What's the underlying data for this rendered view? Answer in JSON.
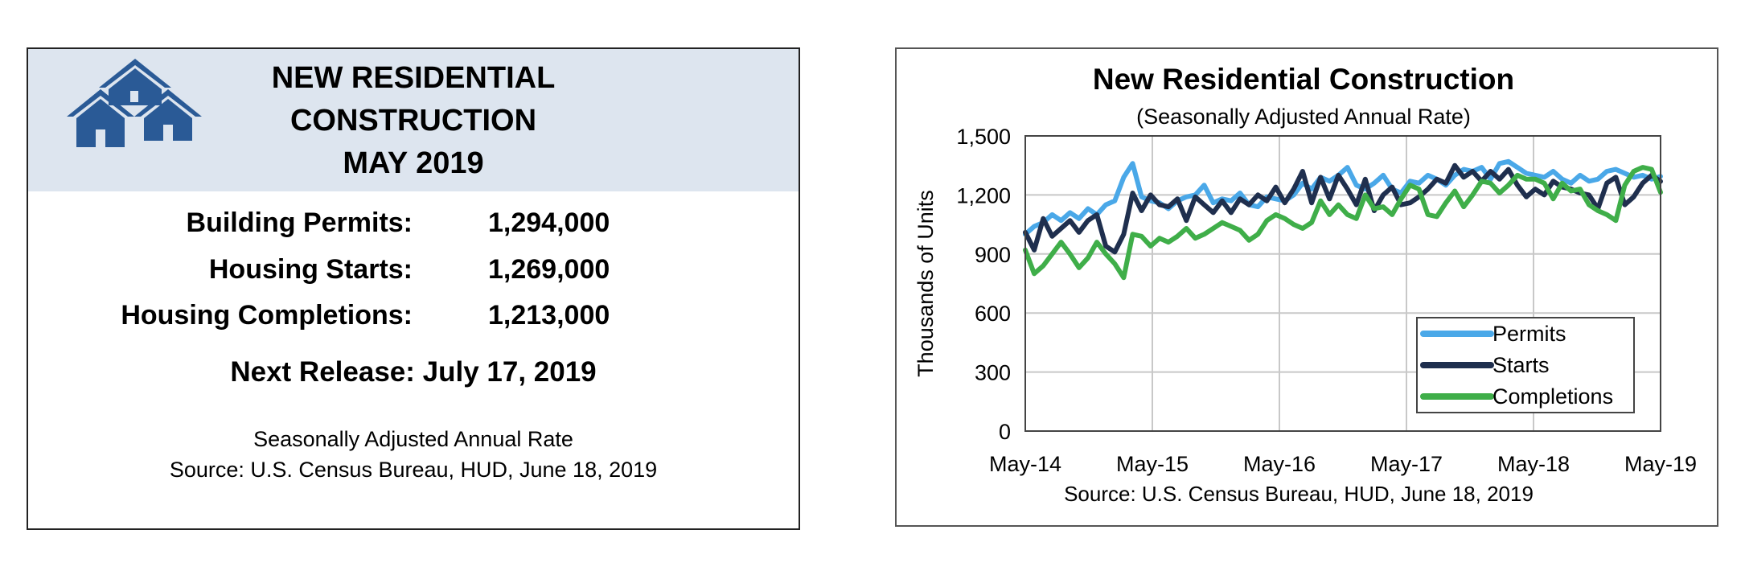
{
  "summary": {
    "title_lines": [
      "NEW RESIDENTIAL",
      "CONSTRUCTION",
      "MAY 2019"
    ],
    "stats": [
      {
        "label": "Building Permits:",
        "value": "1,294,000"
      },
      {
        "label": "Housing Starts:",
        "value": "1,269,000"
      },
      {
        "label": "Housing Completions:",
        "value": "1,213,000"
      }
    ],
    "next_release": "Next Release:  July 17, 2019",
    "rate_note": "Seasonally Adjusted Annual Rate",
    "source": "Source:  U.S. Census Bureau, HUD, June 18, 2019",
    "logo_icon": "houses-icon",
    "logo_color": "#2a5a96"
  },
  "chart_data": {
    "type": "line",
    "title": "New Residential Construction",
    "subtitle": "(Seasonally Adjusted Annual Rate)",
    "ylabel": "Thousands of Units",
    "xlabel": "",
    "ylim": [
      0,
      1500
    ],
    "yticks": [
      0,
      300,
      600,
      900,
      1200,
      1500
    ],
    "ytick_labels": [
      "0",
      "300",
      "600",
      "900",
      "1,200",
      "1,500"
    ],
    "xticks": [
      "May-14",
      "May-15",
      "May-16",
      "May-17",
      "May-18",
      "May-19"
    ],
    "grid": true,
    "legend_position": "bottom-right",
    "source": "Source:  U.S. Census Bureau, HUD, June 18, 2019",
    "series": [
      {
        "name": "Permits",
        "color": "#4aa8e8",
        "values": [
          1000,
          1040,
          1060,
          1100,
          1070,
          1110,
          1080,
          1130,
          1100,
          1150,
          1170,
          1290,
          1360,
          1190,
          1170,
          1160,
          1130,
          1170,
          1190,
          1200,
          1250,
          1160,
          1180,
          1170,
          1210,
          1150,
          1140,
          1190,
          1180,
          1170,
          1200,
          1260,
          1230,
          1290,
          1270,
          1300,
          1340,
          1250,
          1230,
          1260,
          1300,
          1230,
          1210,
          1270,
          1260,
          1300,
          1280,
          1250,
          1300,
          1330,
          1320,
          1340,
          1280,
          1360,
          1370,
          1340,
          1310,
          1300,
          1290,
          1320,
          1280,
          1260,
          1300,
          1270,
          1280,
          1320,
          1330,
          1310,
          1290,
          1300,
          1280,
          1294
        ]
      },
      {
        "name": "Starts",
        "color": "#1f2f4e",
        "values": [
          1010,
          920,
          1080,
          990,
          1030,
          1070,
          1010,
          1070,
          1100,
          940,
          910,
          1000,
          1210,
          1120,
          1200,
          1150,
          1140,
          1180,
          1070,
          1190,
          1150,
          1110,
          1170,
          1110,
          1180,
          1150,
          1200,
          1170,
          1240,
          1160,
          1230,
          1320,
          1160,
          1290,
          1180,
          1300,
          1230,
          1150,
          1280,
          1120,
          1200,
          1240,
          1150,
          1160,
          1190,
          1230,
          1280,
          1260,
          1350,
          1290,
          1320,
          1270,
          1320,
          1280,
          1330,
          1250,
          1190,
          1230,
          1200,
          1270,
          1240,
          1230,
          1210,
          1200,
          1130,
          1260,
          1290,
          1150,
          1190,
          1260,
          1300,
          1269
        ]
      },
      {
        "name": "Completions",
        "color": "#3fae49",
        "values": [
          920,
          800,
          840,
          900,
          960,
          900,
          830,
          880,
          960,
          900,
          850,
          780,
          1000,
          990,
          940,
          980,
          960,
          990,
          1030,
          980,
          1000,
          1030,
          1060,
          1040,
          1020,
          970,
          1000,
          1070,
          1100,
          1080,
          1050,
          1030,
          1060,
          1170,
          1100,
          1150,
          1100,
          1080,
          1200,
          1130,
          1140,
          1100,
          1180,
          1250,
          1230,
          1100,
          1090,
          1160,
          1220,
          1140,
          1200,
          1270,
          1260,
          1210,
          1250,
          1300,
          1280,
          1280,
          1260,
          1180,
          1260,
          1220,
          1230,
          1150,
          1120,
          1100,
          1070,
          1250,
          1320,
          1340,
          1330,
          1213
        ]
      }
    ]
  }
}
